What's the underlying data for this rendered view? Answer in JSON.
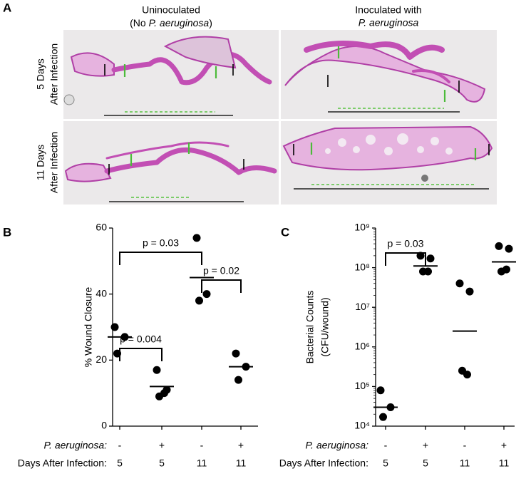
{
  "panel_a": {
    "label": "A",
    "columns": [
      {
        "line1": "Uninoculated",
        "line2_prefix": "(No ",
        "line2_italic": "P. aeruginosa",
        "line2_suffix": ")"
      },
      {
        "line1": "Inoculated with",
        "line2_italic": "P. aeruginosa"
      }
    ],
    "rows": [
      [
        "5 Days",
        "After Infection"
      ],
      [
        "11 Days",
        "After Infection"
      ]
    ]
  },
  "chart_data": [
    {
      "type": "dot",
      "label": "B",
      "ylabel": [
        "% Wound Closure"
      ],
      "row_labels": [
        "P. aeruginosa:",
        "Days After Infection:"
      ],
      "pseudomonas": [
        "-",
        "+",
        "-",
        "+"
      ],
      "days": [
        "5",
        "5",
        "11",
        "11"
      ],
      "groups": [
        {
          "values": [
            30,
            27,
            22
          ],
          "mean": 27
        },
        {
          "values": [
            17,
            11,
            9,
            10
          ],
          "mean": 12
        },
        {
          "values": [
            57,
            40,
            38
          ],
          "mean": 45
        },
        {
          "values": [
            22,
            18,
            14
          ],
          "mean": 18
        }
      ],
      "ylim": [
        0,
        60
      ],
      "yticks": [
        0,
        20,
        40,
        60
      ],
      "log": false,
      "color": "#000000",
      "comparisons": [
        {
          "groups": [
            0,
            2
          ],
          "label": "p = 0.03"
        },
        {
          "groups": [
            2,
            3
          ],
          "label": "p = 0.02"
        },
        {
          "groups": [
            0,
            1
          ],
          "label": "p = 0.004"
        }
      ]
    },
    {
      "type": "dot",
      "label": "C",
      "ylabel": [
        "Bacterial Counts",
        "(CFU/wound)"
      ],
      "row_labels": [
        "P. aeruginosa:",
        "Days After Infection:"
      ],
      "pseudomonas": [
        "-",
        "+",
        "-",
        "+"
      ],
      "days": [
        "5",
        "5",
        "11",
        "11"
      ],
      "groups": [
        {
          "values": [
            80000,
            30000,
            17000
          ],
          "mean": 30000
        },
        {
          "values": [
            200000000,
            170000000,
            80000000,
            80000000
          ],
          "mean": 110000000
        },
        {
          "values": [
            40000000,
            25000000,
            250000,
            200000
          ],
          "mean": 2500000
        },
        {
          "values": [
            350000000,
            300000000,
            80000000,
            90000000
          ],
          "mean": 140000000
        }
      ],
      "ylim": [
        10000,
        1000000000
      ],
      "yticks": [
        {
          "value": 10000,
          "label": "10⁴"
        },
        {
          "value": 100000,
          "label": "10⁵"
        },
        {
          "value": 1000000,
          "label": "10⁶"
        },
        {
          "value": 10000000,
          "label": "10⁷"
        },
        {
          "value": 100000000,
          "label": "10⁸"
        },
        {
          "value": 1000000000,
          "label": "10⁹"
        }
      ],
      "log": true,
      "color": "#000000",
      "comparisons": [
        {
          "groups": [
            0,
            1
          ],
          "label": "p = 0.03"
        }
      ]
    }
  ]
}
